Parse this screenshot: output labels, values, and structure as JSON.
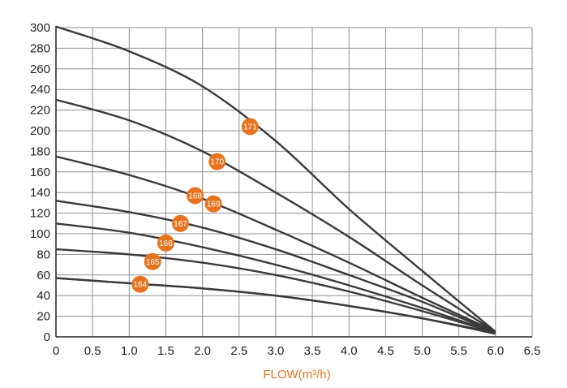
{
  "chart_data": {
    "type": "line",
    "title": "",
    "xlabel": "FLOW(m³/h)",
    "ylabel": "",
    "xlim": [
      0,
      6.5
    ],
    "ylim": [
      0,
      300
    ],
    "x_ticks": [
      "0",
      "0.5",
      "1.0",
      "1.5",
      "2.0",
      "2.5",
      "3.0",
      "3.5",
      "4.0",
      "4.5",
      "5.0",
      "5.5",
      "6.0",
      "6.5"
    ],
    "y_ticks": [
      "0",
      "20",
      "40",
      "60",
      "80",
      "100",
      "120",
      "140",
      "160",
      "180",
      "200",
      "220",
      "240",
      "260",
      "280",
      "300"
    ],
    "grid": true,
    "colors": {
      "curve": "#3a3a3a",
      "badge": "#e8731e",
      "xlabel": "#e8731e",
      "grid": "#8f8f8f",
      "axis": "#222222"
    },
    "series": [
      {
        "name": "171",
        "x": [
          0,
          1.0,
          2.0,
          3.0,
          4.0,
          5.0,
          6.0
        ],
        "values": [
          301,
          277,
          243,
          190,
          124,
          64,
          5
        ],
        "label_at": [
          2.65,
          204
        ]
      },
      {
        "name": "170",
        "x": [
          0,
          1.0,
          2.0,
          3.0,
          4.0,
          5.0,
          6.0
        ],
        "values": [
          230,
          210,
          180,
          140,
          97,
          50,
          5
        ],
        "label_at": [
          2.2,
          170
        ]
      },
      {
        "name": "169",
        "x": [
          0,
          1.0,
          2.0,
          3.0,
          4.0,
          5.0,
          6.0
        ],
        "values": [
          175,
          157,
          134,
          104,
          72,
          38,
          5
        ],
        "label_at": [
          2.15,
          129
        ]
      },
      {
        "name": "168",
        "x": [
          0,
          1.0,
          2.0,
          3.0,
          4.0,
          5.0,
          6.0
        ],
        "values": [
          132,
          121,
          106,
          85,
          60,
          34,
          4
        ],
        "label_at": [
          1.9,
          137
        ]
      },
      {
        "name": "167",
        "x": [
          0,
          1.0,
          2.0,
          3.0,
          4.0,
          5.0,
          6.0
        ],
        "values": [
          110,
          101,
          87,
          70,
          50,
          28,
          4
        ],
        "label_at": [
          1.7,
          110
        ]
      },
      {
        "name": "166",
        "x": [
          0,
          1.0,
          2.0,
          3.0,
          4.0,
          5.0,
          6.0
        ],
        "values": [
          85,
          80,
          72,
          60,
          44,
          25,
          4
        ],
        "label_at": [
          1.5,
          91
        ]
      },
      {
        "name": "165",
        "x": [
          0,
          1.0,
          2.0,
          3.0,
          4.0,
          5.0,
          6.0
        ],
        "values": [
          57,
          52,
          47,
          40,
          30,
          18,
          4
        ],
        "label_at": [
          1.32,
          73
        ]
      },
      {
        "name": "164",
        "x": [
          0,
          1.0,
          2.0,
          3.0,
          4.0,
          5.0,
          6.0
        ],
        "values": [
          57,
          52,
          47,
          40,
          30,
          18,
          3
        ],
        "label_at": [
          1.15,
          51
        ]
      }
    ]
  }
}
